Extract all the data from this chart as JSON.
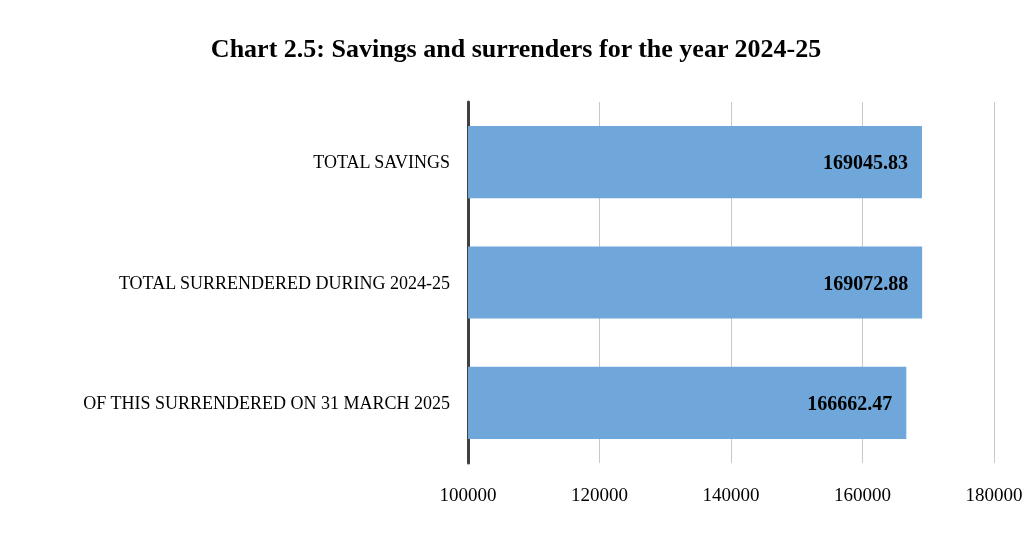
{
  "chart_data": {
    "type": "bar",
    "orientation": "horizontal",
    "title": "Chart 2.5: Savings and surrenders for the year 2024-25",
    "categories": [
      "TOTAL SAVINGS",
      "TOTAL SURRENDERED DURING 2024-25",
      "OF THIS SURRENDERED ON 31 MARCH 2025"
    ],
    "values": [
      169045.83,
      169072.88,
      166662.47
    ],
    "color": "#70a7da",
    "xlim": [
      100000,
      180000
    ],
    "xticks": [
      100000,
      120000,
      140000,
      160000,
      180000
    ],
    "grid": "x",
    "data_labels": true
  }
}
